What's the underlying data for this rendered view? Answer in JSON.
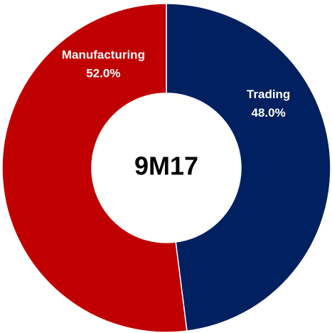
{
  "chart_data": {
    "type": "pie",
    "variant": "donut",
    "center_label": "9M17",
    "slices": [
      {
        "label": "Trading",
        "value": 48.0,
        "value_label": "48.0%",
        "color": "#002060"
      },
      {
        "label": "Manufacturing",
        "value": 52.0,
        "value_label": "52.0%",
        "color": "#C00000"
      }
    ],
    "start": "top",
    "direction": "clockwise",
    "legend": "none"
  }
}
